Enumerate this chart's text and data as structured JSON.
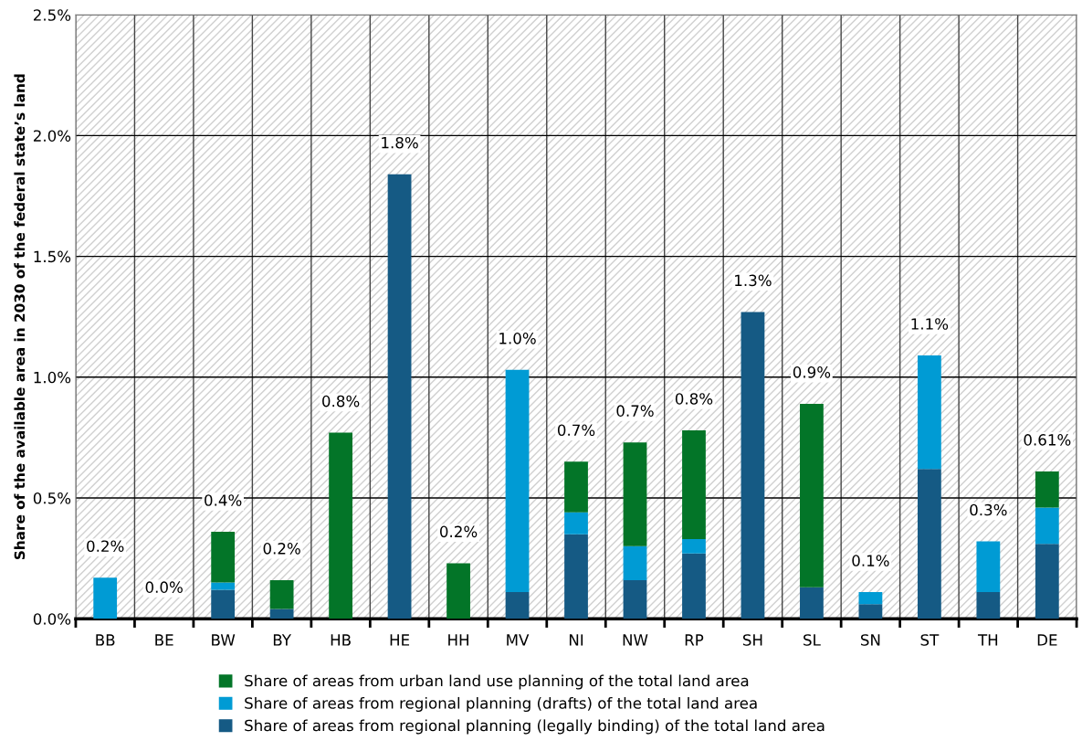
{
  "chart_data": {
    "type": "bar",
    "stacked": true,
    "ylabel": "Share of the available area in 2030 of the federal state’s land",
    "categories": [
      "BB",
      "BE",
      "BW",
      "BY",
      "HB",
      "HE",
      "HH",
      "MV",
      "NI",
      "NW",
      "RP",
      "SH",
      "SL",
      "SN",
      "ST",
      "TH",
      "DE"
    ],
    "series": [
      {
        "name": "Share of areas from regional planning (legally binding) of the total land area",
        "color": "#155a84",
        "values": [
          0,
          0,
          0.12,
          0.04,
          0,
          1.84,
          0,
          0.11,
          0.35,
          0.16,
          0.27,
          1.27,
          0.13,
          0.06,
          0.62,
          0.11,
          0.31
        ]
      },
      {
        "name": "Share of areas from regional planning (drafts) of the total land area",
        "color": "#009bd4",
        "values": [
          0.17,
          0,
          0.03,
          0,
          0,
          0,
          0,
          0.92,
          0.09,
          0.14,
          0.06,
          0,
          0,
          0.05,
          0.47,
          0.21,
          0.15
        ]
      },
      {
        "name": "Share of areas from urban land use planning of the total land area",
        "color": "#037528",
        "values": [
          0,
          0,
          0.21,
          0.12,
          0.77,
          0,
          0.23,
          0,
          0.21,
          0.43,
          0.45,
          0,
          0.76,
          0,
          0,
          0,
          0.15
        ]
      }
    ],
    "totals": [
      "0.2%",
      "0.0%",
      "0.4%",
      "0.2%",
      "0.8%",
      "1.8%",
      "0.2%",
      "1.0%",
      "0.7%",
      "0.7%",
      "0.8%",
      "1.3%",
      "0.9%",
      "0.1%",
      "1.1%",
      "0.3%",
      "0.61%"
    ],
    "ylim": [
      0,
      2.5
    ],
    "yticks": [
      {
        "value": 0,
        "label": "0.0%"
      },
      {
        "value": 0.5,
        "label": "0.5%"
      },
      {
        "value": 1.0,
        "label": "1.0%"
      },
      {
        "value": 1.5,
        "label": "1.5%"
      },
      {
        "value": 2.0,
        "label": "2.0%"
      },
      {
        "value": 2.5,
        "label": "2.5%"
      }
    ],
    "grid": true,
    "legend": "bottom"
  }
}
